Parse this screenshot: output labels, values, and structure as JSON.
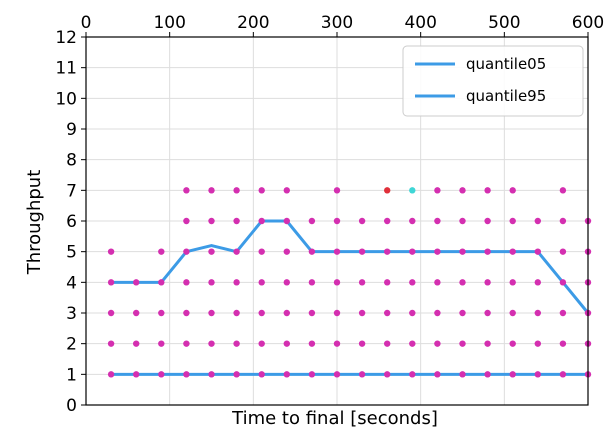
{
  "chart_data": {
    "type": "scatter",
    "xlabel": "Time to final [seconds]",
    "ylabel": "Throughput",
    "xlim": [
      0,
      600
    ],
    "ylim": [
      0,
      12
    ],
    "x_ticks": [
      0,
      100,
      200,
      300,
      400,
      500,
      600
    ],
    "y_ticks": [
      0,
      1,
      2,
      3,
      4,
      5,
      6,
      7,
      8,
      9,
      10,
      11,
      12
    ],
    "x_tick_position": "top",
    "grid": true,
    "legend": {
      "placement": "top-right",
      "entries": [
        "quantile05",
        "quantile95"
      ]
    },
    "colors": {
      "quantile_line": "#3c9be6",
      "points": "#d42fb0",
      "point_red": "#e0303a",
      "point_cyan": "#3fd6d6"
    },
    "series": [
      {
        "name": "quantile05",
        "kind": "line",
        "x": [
          30,
          60,
          90,
          120,
          150,
          180,
          210,
          240,
          270,
          300,
          330,
          360,
          390,
          420,
          450,
          480,
          510,
          540,
          570,
          600
        ],
        "y": [
          1,
          1,
          1,
          1,
          1,
          1,
          1,
          1,
          1,
          1,
          1,
          1,
          1,
          1,
          1,
          1,
          1,
          1,
          1,
          1
        ]
      },
      {
        "name": "quantile95",
        "kind": "line",
        "x": [
          30,
          60,
          90,
          120,
          150,
          180,
          210,
          240,
          270,
          300,
          330,
          360,
          390,
          420,
          450,
          480,
          510,
          540,
          570,
          600
        ],
        "y": [
          4,
          4,
          4,
          5,
          5.2,
          5,
          6,
          6,
          5,
          5,
          5,
          5,
          5,
          5,
          5,
          5,
          5,
          5,
          4,
          3
        ]
      },
      {
        "kind": "points",
        "columns": [
          {
            "x": 30,
            "y": [
              1,
              2,
              3,
              4,
              5
            ]
          },
          {
            "x": 60,
            "y": [
              1,
              2,
              3,
              4
            ]
          },
          {
            "x": 90,
            "y": [
              1,
              2,
              3,
              4,
              5
            ]
          },
          {
            "x": 120,
            "y": [
              1,
              2,
              3,
              4,
              5,
              6,
              7
            ]
          },
          {
            "x": 150,
            "y": [
              1,
              2,
              3,
              4,
              5,
              6,
              7
            ]
          },
          {
            "x": 180,
            "y": [
              1,
              2,
              3,
              4,
              5,
              6,
              7
            ]
          },
          {
            "x": 210,
            "y": [
              1,
              2,
              3,
              4,
              5,
              6,
              7
            ]
          },
          {
            "x": 240,
            "y": [
              1,
              2,
              3,
              4,
              5,
              6,
              7
            ]
          },
          {
            "x": 270,
            "y": [
              1,
              2,
              3,
              4,
              5,
              6
            ]
          },
          {
            "x": 300,
            "y": [
              1,
              2,
              3,
              4,
              5,
              6,
              7
            ]
          },
          {
            "x": 330,
            "y": [
              1,
              2,
              3,
              4,
              5,
              6
            ]
          },
          {
            "x": 360,
            "y": [
              1,
              2,
              3,
              4,
              5,
              6
            ]
          },
          {
            "x": 390,
            "y": [
              1,
              2,
              3,
              4,
              5,
              6
            ]
          },
          {
            "x": 420,
            "y": [
              1,
              2,
              3,
              4,
              5,
              6,
              7
            ]
          },
          {
            "x": 450,
            "y": [
              1,
              2,
              3,
              4,
              5,
              6,
              7
            ]
          },
          {
            "x": 480,
            "y": [
              1,
              2,
              3,
              4,
              5,
              6,
              7
            ]
          },
          {
            "x": 510,
            "y": [
              1,
              2,
              3,
              4,
              5,
              6,
              7
            ]
          },
          {
            "x": 540,
            "y": [
              1,
              2,
              3,
              4,
              5,
              6
            ]
          },
          {
            "x": 570,
            "y": [
              1,
              2,
              3,
              4,
              5,
              6,
              7
            ]
          },
          {
            "x": 600,
            "y": [
              1,
              2,
              3,
              4,
              5,
              6
            ]
          }
        ],
        "highlight_points": [
          {
            "x": 360,
            "y": 7,
            "color": "red"
          },
          {
            "x": 390,
            "y": 7,
            "color": "cyan"
          }
        ]
      }
    ]
  }
}
